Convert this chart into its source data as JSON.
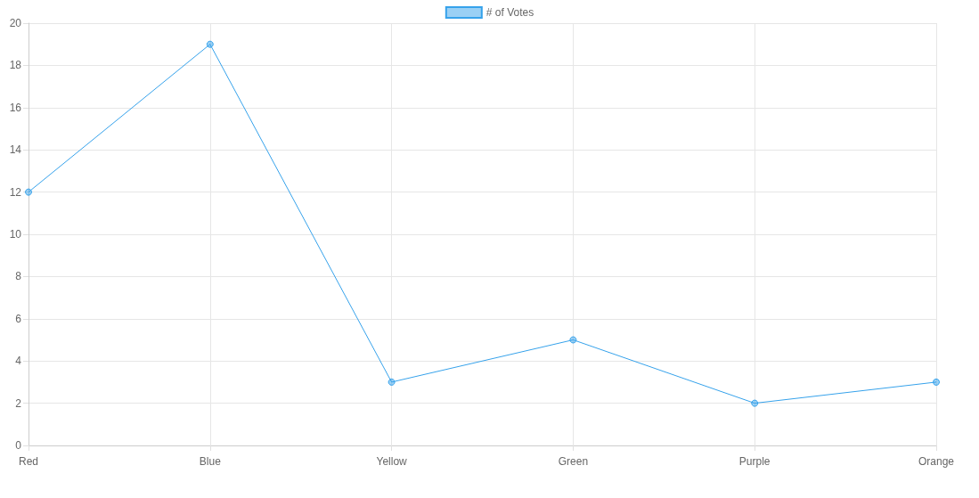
{
  "chart_data": {
    "type": "line",
    "categories": [
      "Red",
      "Blue",
      "Yellow",
      "Green",
      "Purple",
      "Orange"
    ],
    "series": [
      {
        "name": "# of Votes",
        "color": "#36a2eb",
        "values": [
          12,
          19,
          3,
          5,
          2,
          3
        ]
      }
    ],
    "ylim": [
      0,
      20
    ],
    "yticks": [
      0,
      2,
      4,
      6,
      8,
      10,
      12,
      14,
      16,
      18,
      20
    ],
    "grid": true,
    "legend": "top",
    "marker": "circle",
    "line_style": "solid"
  }
}
